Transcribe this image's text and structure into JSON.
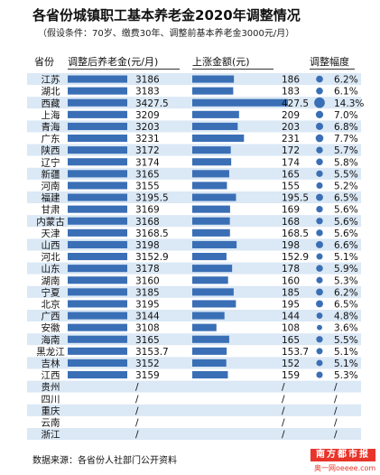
{
  "title": "各省份城镇职工基本养老金2020年调整情况",
  "subtitle": "（假设条件：70岁、缴费30年、调整前基本养老金3000元/月）",
  "source": "数据来源：各省份人社部门公开资料",
  "logo": {
    "text": "南方都市报",
    "sub": "奥一网oeeee.com"
  },
  "colors": {
    "bar": "#3a6fb6",
    "dot": "#3a6fb6",
    "row_odd": "#dbe8f5",
    "row_even": "#ffffff",
    "header_line": "#333333"
  },
  "chart_data": {
    "type": "table",
    "columns": [
      "省份",
      "调整后养老金(元/月)",
      "上涨金额(元)",
      "调整幅度"
    ],
    "rows": [
      {
        "province": "江苏",
        "pension": "3186",
        "increase": "186",
        "rate": "6.2%"
      },
      {
        "province": "湖北",
        "pension": "3183",
        "increase": "183",
        "rate": "6.1%"
      },
      {
        "province": "西藏",
        "pension": "3427.5",
        "increase": "427.5",
        "rate": "14.3%"
      },
      {
        "province": "上海",
        "pension": "3209",
        "increase": "209",
        "rate": "7.0%"
      },
      {
        "province": "青海",
        "pension": "3203",
        "increase": "203",
        "rate": "6.8%"
      },
      {
        "province": "广东",
        "pension": "3231",
        "increase": "231",
        "rate": "7.7%"
      },
      {
        "province": "陕西",
        "pension": "3172",
        "increase": "172",
        "rate": "5.7%"
      },
      {
        "province": "辽宁",
        "pension": "3174",
        "increase": "174",
        "rate": "5.8%"
      },
      {
        "province": "新疆",
        "pension": "3165",
        "increase": "165",
        "rate": "5.5%"
      },
      {
        "province": "河南",
        "pension": "3155",
        "increase": "155",
        "rate": "5.2%"
      },
      {
        "province": "福建",
        "pension": "3195.5",
        "increase": "195.5",
        "rate": "6.5%"
      },
      {
        "province": "甘肃",
        "pension": "3169",
        "increase": "169",
        "rate": "5.6%"
      },
      {
        "province": "内蒙古",
        "pension": "3168",
        "increase": "168",
        "rate": "5.6%"
      },
      {
        "province": "天津",
        "pension": "3168.5",
        "increase": "168.5",
        "rate": "5.6%"
      },
      {
        "province": "山西",
        "pension": "3198",
        "increase": "198",
        "rate": "6.6%"
      },
      {
        "province": "河北",
        "pension": "3152.9",
        "increase": "152.9",
        "rate": "5.1%"
      },
      {
        "province": "山东",
        "pension": "3178",
        "increase": "178",
        "rate": "5.9%"
      },
      {
        "province": "湖南",
        "pension": "3160",
        "increase": "160",
        "rate": "5.3%"
      },
      {
        "province": "宁夏",
        "pension": "3185",
        "increase": "185",
        "rate": "6.2%"
      },
      {
        "province": "北京",
        "pension": "3195",
        "increase": "195",
        "rate": "6.5%"
      },
      {
        "province": "广西",
        "pension": "3144",
        "increase": "144",
        "rate": "4.8%"
      },
      {
        "province": "安徽",
        "pension": "3108",
        "increase": "108",
        "rate": "3.6%"
      },
      {
        "province": "海南",
        "pension": "3165",
        "increase": "165",
        "rate": "5.5%"
      },
      {
        "province": "黑龙江",
        "pension": "3153.7",
        "increase": "153.7",
        "rate": "5.1%"
      },
      {
        "province": "吉林",
        "pension": "3152",
        "increase": "152",
        "rate": "5.1%"
      },
      {
        "province": "江西",
        "pension": "3159",
        "increase": "159",
        "rate": "5.3%"
      },
      {
        "province": "贵州",
        "pension": "/",
        "increase": "/",
        "rate": "/"
      },
      {
        "province": "四川",
        "pension": "/",
        "increase": "/",
        "rate": "/"
      },
      {
        "province": "重庆",
        "pension": "/",
        "increase": "/",
        "rate": "/"
      },
      {
        "province": "云南",
        "pension": "/",
        "increase": "/",
        "rate": "/"
      },
      {
        "province": "浙江",
        "pension": "/",
        "increase": "/",
        "rate": "/"
      }
    ]
  }
}
